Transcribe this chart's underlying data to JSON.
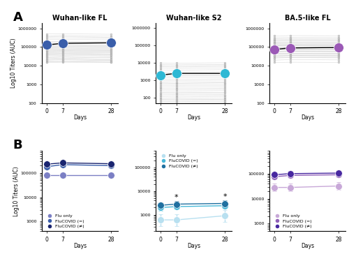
{
  "panel_A_titles": [
    "Wuhan-like FL",
    "Wuhan-like S2",
    "BA.5-like FL"
  ],
  "panel_A_label": "A",
  "panel_B_label": "B",
  "gmt_colors_A": [
    "#3a5eaa",
    "#2eb8d4",
    "#9b59b6"
  ],
  "gmt_A_day0": [
    130000,
    2000,
    75000
  ],
  "gmt_A_day7": [
    160000,
    2500,
    90000
  ],
  "gmt_A_day28": [
    170000,
    2500,
    95000
  ],
  "gmt_A_ci_lo_day0": [
    100000,
    1500,
    55000
  ],
  "gmt_A_ci_hi_day0": [
    180000,
    2800,
    110000
  ],
  "gmt_A_ci_lo_day7": [
    130000,
    1900,
    70000
  ],
  "gmt_A_ci_hi_day7": [
    200000,
    3200,
    115000
  ],
  "gmt_A_ci_lo_day28": [
    140000,
    2000,
    75000
  ],
  "gmt_A_ci_hi_day28": [
    210000,
    3200,
    120000
  ],
  "indiv_A1_d0": [
    180000,
    150000,
    120000,
    100000,
    85000,
    70000,
    60000,
    50000,
    42000,
    35000,
    28000,
    22000,
    18000,
    15000,
    250000,
    300000,
    400000,
    200000,
    130000,
    110000,
    90000,
    75000,
    65000,
    55000,
    45000,
    38000,
    30000,
    24000,
    20000,
    16000,
    500000,
    350000
  ],
  "indiv_A1_d7": [
    185000,
    155000,
    125000,
    105000,
    88000,
    72000,
    62000,
    52000,
    44000,
    36000,
    29000,
    23000,
    18500,
    15500,
    260000,
    310000,
    420000,
    205000,
    135000,
    112000,
    92000,
    77000,
    67000,
    57000,
    47000,
    39000,
    31000,
    25000,
    21000,
    16500,
    510000,
    360000
  ],
  "indiv_A1_d28": [
    175000,
    148000,
    118000,
    102000,
    83000,
    69000,
    59000,
    49000,
    41000,
    34000,
    27000,
    21000,
    17500,
    15000,
    245000,
    295000,
    395000,
    198000,
    128000,
    108000,
    89000,
    73000,
    63000,
    53000,
    43000,
    37000,
    29000,
    23000,
    19000,
    15500,
    490000,
    340000
  ],
  "indiv_A2_d0": [
    5000,
    3000,
    2000,
    1500,
    1000,
    700,
    500,
    350,
    250,
    180,
    130,
    90,
    70,
    50,
    8000,
    6000,
    4000,
    2500,
    1800,
    1200,
    800,
    600,
    420,
    300,
    200,
    150,
    110,
    80,
    60,
    45,
    10000,
    7000
  ],
  "indiv_A2_d7": [
    4800,
    2900,
    1950,
    1450,
    980,
    680,
    490,
    340,
    245,
    175,
    125,
    88,
    68,
    48,
    7800,
    5800,
    3900,
    2450,
    1750,
    1180,
    780,
    590,
    410,
    295,
    195,
    148,
    108,
    78,
    58,
    44,
    9800,
    6800
  ],
  "indiv_A2_d28": [
    5200,
    3100,
    2050,
    1550,
    1020,
    720,
    510,
    360,
    255,
    185,
    135,
    92,
    72,
    52,
    8200,
    6200,
    4100,
    2550,
    1850,
    1220,
    820,
    610,
    430,
    305,
    205,
    152,
    112,
    82,
    62,
    46,
    10200,
    7200
  ],
  "indiv_A3_d0": [
    120000,
    90000,
    70000,
    55000,
    42000,
    33000,
    26000,
    20000,
    15000,
    250000,
    180000,
    140000,
    100000,
    78000,
    60000,
    46000,
    35000,
    27000,
    320000,
    220000,
    170000,
    125000,
    95000,
    73000,
    56000,
    43000,
    33000,
    400000,
    280000,
    210000,
    155000,
    118000
  ],
  "indiv_A3_d7": [
    125000,
    93000,
    72000,
    57000,
    43000,
    34000,
    27000,
    21000,
    15500,
    260000,
    185000,
    145000,
    103000,
    80000,
    62000,
    47000,
    36000,
    28000,
    330000,
    225000,
    175000,
    128000,
    97000,
    75000,
    58000,
    44000,
    34000,
    415000,
    290000,
    215000,
    158000,
    120000
  ],
  "indiv_A3_d28": [
    122000,
    91000,
    71000,
    56000,
    42500,
    33500,
    26500,
    20500,
    15200,
    255000,
    182000,
    142000,
    101000,
    79000,
    61000,
    46500,
    35500,
    27500,
    325000,
    222000,
    172000,
    126000,
    96000,
    74000,
    57000,
    43500,
    33500,
    408000,
    285000,
    212000,
    156000,
    119000
  ],
  "group_colors_B1": [
    "#7b7fc4",
    "#3a5eaa",
    "#1a2570"
  ],
  "group_colors_B2": [
    "#b8e0f0",
    "#47b8d8",
    "#2070a0"
  ],
  "group_colors_B3": [
    "#c8a8d8",
    "#9060b8",
    "#4828a0"
  ],
  "B1_flu_only": [
    80000,
    80000,
    80000
  ],
  "B1_flucovid_eq": [
    180000,
    220000,
    200000
  ],
  "B1_flucovid_ne": [
    230000,
    260000,
    240000
  ],
  "B1_flu_err": [
    0.12,
    0.12,
    0.12
  ],
  "B1_eq_err": [
    0.08,
    0.08,
    0.08
  ],
  "B1_ne_err": [
    0.08,
    0.08,
    0.08
  ],
  "B2_flu_only": [
    600,
    600,
    900
  ],
  "B2_flucovid_eq": [
    2000,
    2200,
    2400
  ],
  "B2_flucovid_ne": [
    2500,
    2800,
    3000
  ],
  "B2_flu_err": [
    0.25,
    0.25,
    0.25
  ],
  "B2_eq_err": [
    0.12,
    0.12,
    0.12
  ],
  "B2_ne_err": [
    0.12,
    0.12,
    0.12
  ],
  "B3_flu_only": [
    28000,
    28000,
    32000
  ],
  "B3_flucovid_eq": [
    75000,
    85000,
    90000
  ],
  "B3_flucovid_ne": [
    90000,
    100000,
    105000
  ],
  "B3_flu_err": [
    0.15,
    0.15,
    0.15
  ],
  "B3_eq_err": [
    0.1,
    0.1,
    0.1
  ],
  "B3_ne_err": [
    0.1,
    0.1,
    0.1
  ],
  "days": [
    0,
    7,
    28
  ],
  "xlabel": "Days",
  "ylabel_A": "Log10 Titers (AUC)",
  "ylabel_B": "Log10 Titers (AUC)",
  "legend_labels": [
    "Flu only",
    "FluCOVID (=)",
    "FluCOVID (≠)"
  ]
}
